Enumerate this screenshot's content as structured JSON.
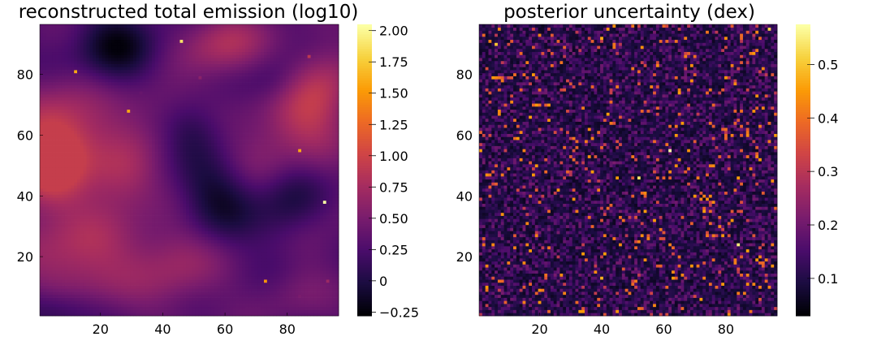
{
  "figure": {
    "background": "#ffffff",
    "colormap": "inferno",
    "colormap_stops": [
      "#000004",
      "#1b0c41",
      "#4a0c6b",
      "#781c6d",
      "#a52c60",
      "#cf4446",
      "#ed6925",
      "#fb9b06",
      "#f7d13d",
      "#fcffa4"
    ]
  },
  "chart_data": [
    {
      "type": "heatmap",
      "title": "reconstructed total emission (log10)",
      "xlabel": "",
      "ylabel": "",
      "xlim": [
        0.5,
        96.5
      ],
      "ylim": [
        0.5,
        96.5
      ],
      "xticks": [
        20,
        40,
        60,
        80
      ],
      "yticks": [
        20,
        40,
        60,
        80
      ],
      "grid": false,
      "colorbar": {
        "range": [
          -0.28,
          2.05
        ],
        "ticks": [
          -0.25,
          0,
          0.25,
          0.5,
          0.75,
          1.0,
          1.25,
          1.5,
          1.75,
          2.0
        ],
        "tick_labels": [
          "−0.25",
          "0",
          "0.25",
          "0.50",
          "0.75",
          "1.00",
          "1.25",
          "1.50",
          "1.75",
          "2.00"
        ]
      },
      "blobs": [
        {
          "x": 3,
          "y": 49,
          "sx": 9,
          "sy": 10,
          "amp": 0.7
        },
        {
          "x": 10,
          "y": 64,
          "sx": 12,
          "sy": 10,
          "amp": 0.5
        },
        {
          "x": 27,
          "y": 47,
          "sx": 8,
          "sy": 8,
          "amp": 0.45
        },
        {
          "x": 14,
          "y": 20,
          "sx": 14,
          "sy": 12,
          "amp": 0.5
        },
        {
          "x": 45,
          "y": 18,
          "sx": 10,
          "sy": 10,
          "amp": 0.35
        },
        {
          "x": 60,
          "y": 90,
          "sx": 9,
          "sy": 7,
          "amp": 0.5
        },
        {
          "x": 85,
          "y": 65,
          "sx": 10,
          "sy": 10,
          "amp": 0.5
        },
        {
          "x": 92,
          "y": 78,
          "sx": 7,
          "sy": 9,
          "amp": 0.35
        },
        {
          "x": 70,
          "y": 52,
          "sx": 10,
          "sy": 8,
          "amp": 0.25
        },
        {
          "x": 86,
          "y": 28,
          "sx": 8,
          "sy": 10,
          "amp": 0.3
        },
        {
          "x": 38,
          "y": 72,
          "sx": 9,
          "sy": 7,
          "amp": 0.2
        },
        {
          "x": 82,
          "y": 8,
          "sx": 8,
          "sy": 6,
          "amp": 0.15
        }
      ],
      "dips": [
        {
          "x": 25,
          "y": 88,
          "sx": 9,
          "sy": 9,
          "amp": 0.5
        },
        {
          "x": 58,
          "y": 40,
          "sx": 9,
          "sy": 10,
          "amp": 0.45
        },
        {
          "x": 82,
          "y": 35,
          "sx": 8,
          "sy": 12,
          "amp": 0.45
        },
        {
          "x": 6,
          "y": 2,
          "sx": 10,
          "sy": 5,
          "amp": 0.35
        },
        {
          "x": 50,
          "y": 62,
          "sx": 7,
          "sy": 7,
          "amp": 0.25
        },
        {
          "x": 76,
          "y": 78,
          "sx": 6,
          "sy": 6,
          "amp": 0.2
        }
      ],
      "background_level": 0.3,
      "hot_pixels": [
        {
          "x": 46,
          "y": 91,
          "v": 1.9
        },
        {
          "x": 12,
          "y": 81,
          "v": 1.6
        },
        {
          "x": 29,
          "y": 68,
          "v": 1.6
        },
        {
          "x": 84,
          "y": 55,
          "v": 1.6
        },
        {
          "x": 92,
          "y": 38,
          "v": 2.05
        },
        {
          "x": 73,
          "y": 12,
          "v": 1.5
        },
        {
          "x": 87,
          "y": 86,
          "v": 0.9
        },
        {
          "x": 52,
          "y": 79,
          "v": 0.6
        },
        {
          "x": 93,
          "y": 12,
          "v": 0.7
        },
        {
          "x": 84,
          "y": 7,
          "v": 0.5
        },
        {
          "x": 33,
          "y": 74,
          "v": 0.4
        }
      ]
    },
    {
      "type": "heatmap",
      "title": "posterior uncertainty (dex)",
      "xlabel": "",
      "ylabel": "",
      "xlim": [
        0.5,
        96.5
      ],
      "ylim": [
        0.5,
        96.5
      ],
      "xticks": [
        20,
        40,
        60,
        80
      ],
      "yticks": [
        20,
        40,
        60,
        80
      ],
      "grid": false,
      "colorbar": {
        "range": [
          0.03,
          0.575
        ],
        "ticks": [
          0.1,
          0.2,
          0.3,
          0.4,
          0.5
        ],
        "tick_labels": [
          "0.1",
          "0.2",
          "0.3",
          "0.4",
          "0.5"
        ]
      },
      "noise_base": 0.1,
      "noise_spread": 0.08,
      "outlier_fraction": 0.06,
      "outlier_range": [
        0.3,
        0.46
      ],
      "bright_pixels": [
        {
          "x": 62,
          "y": 55,
          "v": 0.575
        },
        {
          "x": 52,
          "y": 46,
          "v": 0.54
        },
        {
          "x": 84,
          "y": 24,
          "v": 0.55
        },
        {
          "x": 94,
          "y": 95,
          "v": 0.52
        },
        {
          "x": 6,
          "y": 90,
          "v": 0.5
        },
        {
          "x": 40,
          "y": 13,
          "v": 0.48
        },
        {
          "x": 40,
          "y": 92,
          "v": 0.47
        }
      ]
    }
  ]
}
